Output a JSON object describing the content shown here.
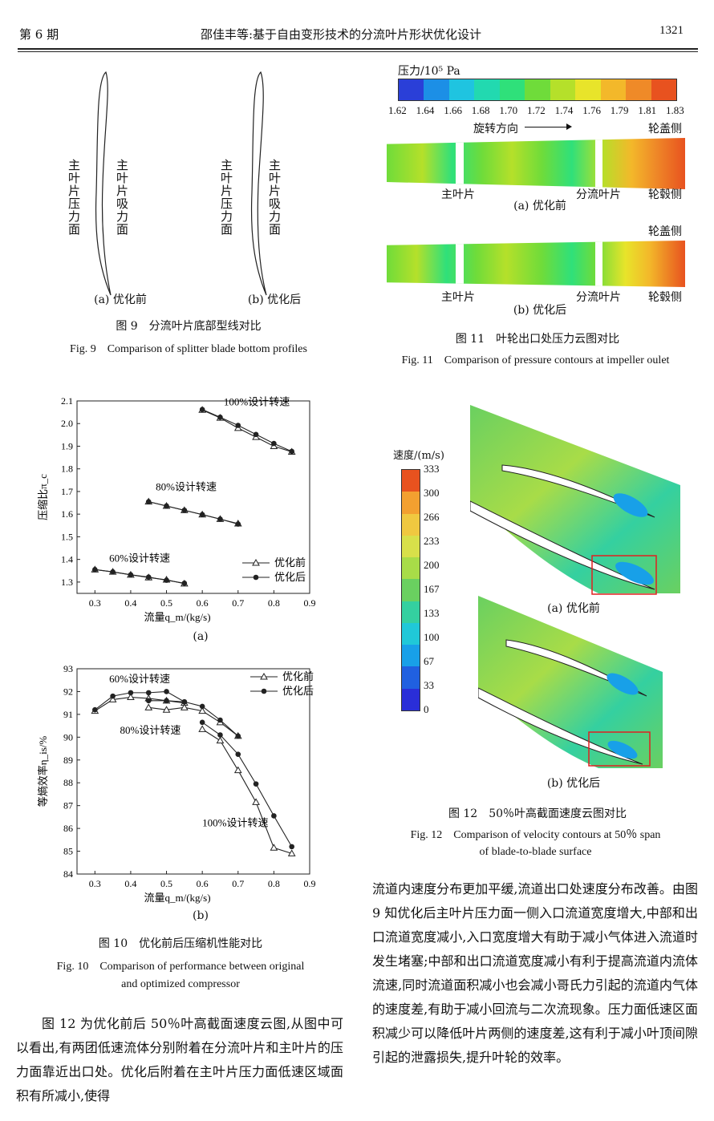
{
  "header": {
    "issue": "第 6 期",
    "title": "邵佳丰等:基于自由变形技术的分流叶片形状优化设计",
    "page": "1321"
  },
  "fig9": {
    "pressure_label": "主叶片压力面",
    "suction_label": "主叶片吸力面",
    "sub_a": "(a) 优化前",
    "sub_b": "(b) 优化后",
    "caption_cn": "图 9　分流叶片底部型线对比",
    "caption_en": "Fig. 9　Comparison of splitter blade bottom profiles"
  },
  "fig11": {
    "colorbar_title": "压力/10⁵ Pa",
    "ticks": [
      "1.62",
      "1.64",
      "1.66",
      "1.68",
      "1.70",
      "1.72",
      "1.74",
      "1.76",
      "1.79",
      "1.81",
      "1.83"
    ],
    "colors": [
      "#2a3fd8",
      "#1c8fe6",
      "#1fc4e0",
      "#22d9b0",
      "#2fe07a",
      "#6fdc3a",
      "#b5e02a",
      "#e8e42a",
      "#f3b82a",
      "#ef8a28",
      "#e8521f"
    ],
    "rotation_label": "旋转方向",
    "shroud": "轮盖侧",
    "hub": "轮毂侧",
    "main_blade": "主叶片",
    "splitter_blade": "分流叶片",
    "sub_a": "(a) 优化前",
    "sub_b": "(b) 优化后",
    "caption_cn": "图 11　叶轮出口处压力云图对比",
    "caption_en": "Fig. 11　Comparison of pressure contours at impeller oulet"
  },
  "fig10": {
    "caption_cn": "图 10　优化前后压缩机性能对比",
    "caption_en_1": "Fig. 10　Comparison of performance between original",
    "caption_en_2": "and optimized compressor",
    "sub_a": "(a)",
    "sub_b": "(b)",
    "legend_before": "优化前",
    "legend_after": "优化后",
    "label_100": "100%设计转速",
    "label_80": "80%设计转速",
    "label_60": "60%设计转速",
    "xlabel": "流量q_m/(kg/s)",
    "ylabel_a": "压缩比π_c",
    "ylabel_b": "等熵效率η_is/%"
  },
  "chart_data": [
    {
      "type": "line",
      "xlabel": "流量q_m/(kg/s)",
      "ylabel": "压缩比π_c",
      "xlim": [
        0.25,
        0.9
      ],
      "ylim": [
        1.25,
        2.1
      ],
      "xticks": [
        0.3,
        0.4,
        0.5,
        0.6,
        0.7,
        0.8,
        0.9
      ],
      "yticks": [
        1.3,
        1.4,
        1.5,
        1.6,
        1.7,
        1.8,
        1.9,
        2.0,
        2.1
      ],
      "series": [
        {
          "name": "优化前",
          "group": "60%设计转速",
          "x": [
            0.3,
            0.35,
            0.4,
            0.45,
            0.5,
            0.55
          ],
          "y": [
            1.355,
            1.345,
            1.332,
            1.32,
            1.31,
            1.293
          ]
        },
        {
          "name": "优化后",
          "group": "60%设计转速",
          "x": [
            0.3,
            0.35,
            0.4,
            0.45,
            0.5,
            0.55
          ],
          "y": [
            1.355,
            1.345,
            1.332,
            1.322,
            1.308,
            1.295
          ]
        },
        {
          "name": "优化前",
          "group": "80%设计转速",
          "x": [
            0.45,
            0.5,
            0.55,
            0.6,
            0.65,
            0.7
          ],
          "y": [
            1.655,
            1.636,
            1.617,
            1.598,
            1.578,
            1.558
          ]
        },
        {
          "name": "优化后",
          "group": "80%设计转速",
          "x": [
            0.45,
            0.5,
            0.55,
            0.6,
            0.65,
            0.7
          ],
          "y": [
            1.655,
            1.636,
            1.617,
            1.598,
            1.578,
            1.556
          ]
        },
        {
          "name": "优化前",
          "group": "100%设计转速",
          "x": [
            0.6,
            0.65,
            0.7,
            0.75,
            0.8,
            0.85
          ],
          "y": [
            2.06,
            2.025,
            1.98,
            1.94,
            1.9,
            1.875
          ]
        },
        {
          "name": "优化后",
          "group": "100%设计转速",
          "x": [
            0.6,
            0.65,
            0.7,
            0.75,
            0.8,
            0.85
          ],
          "y": [
            2.062,
            2.028,
            1.992,
            1.952,
            1.912,
            1.877
          ]
        }
      ]
    },
    {
      "type": "line",
      "xlabel": "流量q_m/(kg/s)",
      "ylabel": "等熵效率η_is/%",
      "xlim": [
        0.25,
        0.9
      ],
      "ylim": [
        84,
        93
      ],
      "xticks": [
        0.3,
        0.4,
        0.5,
        0.6,
        0.7,
        0.8,
        0.9
      ],
      "yticks": [
        84,
        85,
        86,
        87,
        88,
        89,
        90,
        91,
        92,
        93
      ],
      "series": [
        {
          "name": "优化前",
          "group": "60%设计转速",
          "x": [
            0.3,
            0.35,
            0.4,
            0.45,
            0.5,
            0.55
          ],
          "y": [
            91.15,
            91.65,
            91.75,
            91.7,
            91.6,
            91.5
          ]
        },
        {
          "name": "优化后",
          "group": "60%设计转速",
          "x": [
            0.3,
            0.35,
            0.4,
            0.45,
            0.5,
            0.55
          ],
          "y": [
            91.2,
            91.8,
            91.95,
            91.95,
            92.0,
            91.55
          ]
        },
        {
          "name": "优化前",
          "group": "80%设计转速",
          "x": [
            0.45,
            0.5,
            0.55,
            0.6,
            0.65,
            0.7
          ],
          "y": [
            91.3,
            91.2,
            91.3,
            91.15,
            90.65,
            90.05
          ]
        },
        {
          "name": "优化后",
          "group": "80%设计转速",
          "x": [
            0.45,
            0.5,
            0.55,
            0.6,
            0.65,
            0.7
          ],
          "y": [
            91.6,
            91.6,
            91.55,
            91.35,
            90.75,
            90.05
          ]
        },
        {
          "name": "优化前",
          "group": "100%设计转速",
          "x": [
            0.6,
            0.65,
            0.7,
            0.75,
            0.8,
            0.85
          ],
          "y": [
            90.35,
            89.85,
            88.55,
            87.15,
            85.15,
            84.9
          ]
        },
        {
          "name": "优化后",
          "group": "100%设计转速",
          "x": [
            0.6,
            0.65,
            0.7,
            0.75,
            0.8,
            0.85
          ],
          "y": [
            90.65,
            90.1,
            89.25,
            87.95,
            86.55,
            85.2
          ]
        }
      ]
    }
  ],
  "fig12": {
    "colorbar_title": "速度/(m/s)",
    "ticks": [
      "333",
      "300",
      "266",
      "233",
      "200",
      "167",
      "133",
      "100",
      "67",
      "33",
      "0"
    ],
    "colors": [
      "#e8521f",
      "#f3a030",
      "#f0c840",
      "#d8e04a",
      "#a8dc48",
      "#6ad060",
      "#34d0a0",
      "#20c8d8",
      "#18a0e8",
      "#2060e0",
      "#2a2ed8"
    ],
    "sub_a": "(a) 优化前",
    "sub_b": "(b) 优化后",
    "caption_cn": "图 12　50％叶高截面速度云图对比",
    "caption_en_1": "Fig. 12　Comparison of velocity contours at 50％ span",
    "caption_en_2": "of blade-to-blade surface"
  },
  "text_left": "图 12 为优化前后 50％叶高截面速度云图,从图中可以看出,有两团低速流体分别附着在分流叶片和主叶片的压力面靠近出口处。优化后附着在主叶片压力面低速区域面积有所减小,使得",
  "text_right": "流道内速度分布更加平缓,流道出口处速度分布改善。由图 9 知优化后主叶片压力面一侧入口流道宽度增大,中部和出口流道宽度减小,入口宽度增大有助于减小气体进入流道时发生堵塞;中部和出口流道宽度减小有利于提高流道内流体流速,同时流道面积减小也会减小哥氏力引起的流道内气体的速度差,有助于减小回流与二次流现象。压力面低速区面积减少可以降低叶片两侧的速度差,这有利于减小叶顶间隙引起的泄露损失,提升叶轮的效率。"
}
